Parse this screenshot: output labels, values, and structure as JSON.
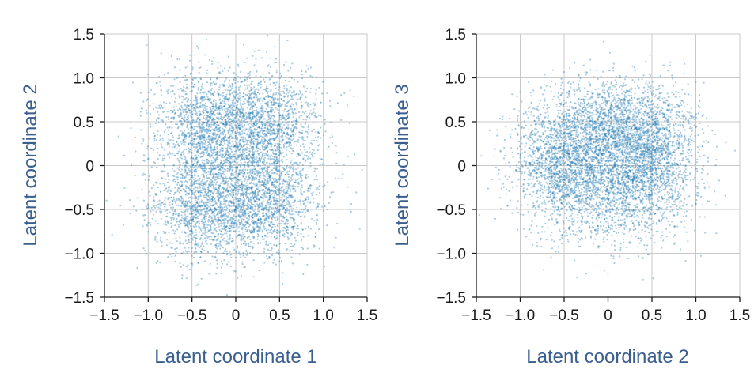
{
  "colors": {
    "points": "#1f78b4",
    "labels": "#3a5f8f",
    "grid": "#c8c8c8",
    "axis": "#1a1a1a"
  },
  "chart_data": [
    {
      "type": "scatter",
      "xlabel": "Latent coordinate 1",
      "ylabel": "Latent coordinate 2",
      "xlim": [
        -1.5,
        1.5
      ],
      "ylim": [
        -1.5,
        1.5
      ],
      "xticks": [
        -1.5,
        -1.0,
        -0.5,
        0,
        0.5,
        1.0,
        1.5
      ],
      "yticks": [
        -1.5,
        -1.0,
        -0.5,
        0,
        0.5,
        1.0,
        1.5
      ],
      "xtick_labels": [
        "−1.5",
        "−1.0",
        "−0.5",
        "0",
        "0.5",
        "1.0",
        "1.5"
      ],
      "ytick_labels": [
        "−1.5",
        "−1.0",
        "−0.5",
        "0",
        "0.5",
        "1.0",
        "1.5"
      ],
      "grid": true,
      "series": [
        {
          "point_count": 6000,
          "clusters": [
            {
              "center": [
                -0.3,
                0.5
              ],
              "spread": [
                0.32,
                0.3
              ]
            },
            {
              "center": [
                0.35,
                0.5
              ],
              "spread": [
                0.32,
                0.3
              ]
            },
            {
              "center": [
                -0.35,
                -0.5
              ],
              "spread": [
                0.32,
                0.3
              ]
            },
            {
              "center": [
                0.35,
                -0.45
              ],
              "spread": [
                0.32,
                0.3
              ]
            },
            {
              "center": [
                0.0,
                0.0
              ],
              "spread": [
                0.45,
                0.4
              ]
            }
          ]
        }
      ]
    },
    {
      "type": "scatter",
      "xlabel": "Latent coordinate 2",
      "ylabel": "Latent coordinate 3",
      "xlim": [
        -1.5,
        1.5
      ],
      "ylim": [
        -1.5,
        1.5
      ],
      "xticks": [
        -1.5,
        -1.0,
        -0.5,
        0,
        0.5,
        1.0,
        1.5
      ],
      "yticks": [
        -1.5,
        -1.0,
        -0.5,
        0,
        0.5,
        1.0,
        1.5
      ],
      "xtick_labels": [
        "−1.5",
        "−1.0",
        "−0.5",
        "0",
        "0.5",
        "1.0",
        "1.5"
      ],
      "ytick_labels": [
        "−1.5",
        "−1.0",
        "−0.5",
        "0",
        "0.5",
        "1.0",
        "1.5"
      ],
      "grid": true,
      "series": [
        {
          "point_count": 6000,
          "clusters": [
            {
              "center": [
                -0.5,
                0.05
              ],
              "spread": [
                0.3,
                0.33
              ]
            },
            {
              "center": [
                0.45,
                0.05
              ],
              "spread": [
                0.3,
                0.33
              ]
            },
            {
              "center": [
                0.0,
                -0.25
              ],
              "spread": [
                0.4,
                0.35
              ]
            },
            {
              "center": [
                0.1,
                0.5
              ],
              "spread": [
                0.4,
                0.25
              ]
            }
          ]
        }
      ]
    }
  ]
}
